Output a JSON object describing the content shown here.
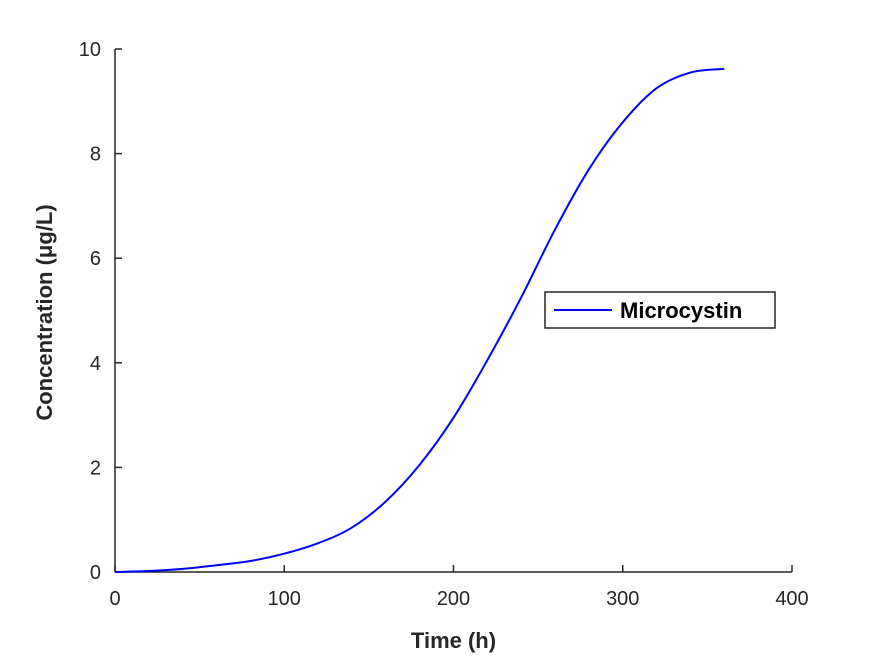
{
  "chart_data": {
    "type": "line",
    "xlabel": "Time (h)",
    "ylabel": "Concentration (μg/L)",
    "xlim": [
      0,
      400
    ],
    "ylim": [
      0,
      10
    ],
    "xticks": [
      0,
      100,
      200,
      300,
      400
    ],
    "yticks": [
      0,
      2,
      4,
      6,
      8,
      10
    ],
    "grid": false,
    "legend_position": "center-right",
    "series": [
      {
        "name": "Microcystin",
        "color": "#0000ff",
        "x": [
          0,
          20,
          40,
          60,
          80,
          100,
          120,
          140,
          160,
          180,
          200,
          220,
          240,
          260,
          280,
          300,
          320,
          340,
          360
        ],
        "y": [
          0,
          0.02,
          0.06,
          0.13,
          0.21,
          0.35,
          0.55,
          0.85,
          1.35,
          2.05,
          2.95,
          4.05,
          5.25,
          6.55,
          7.7,
          8.6,
          9.25,
          9.55,
          9.62
        ]
      }
    ]
  }
}
